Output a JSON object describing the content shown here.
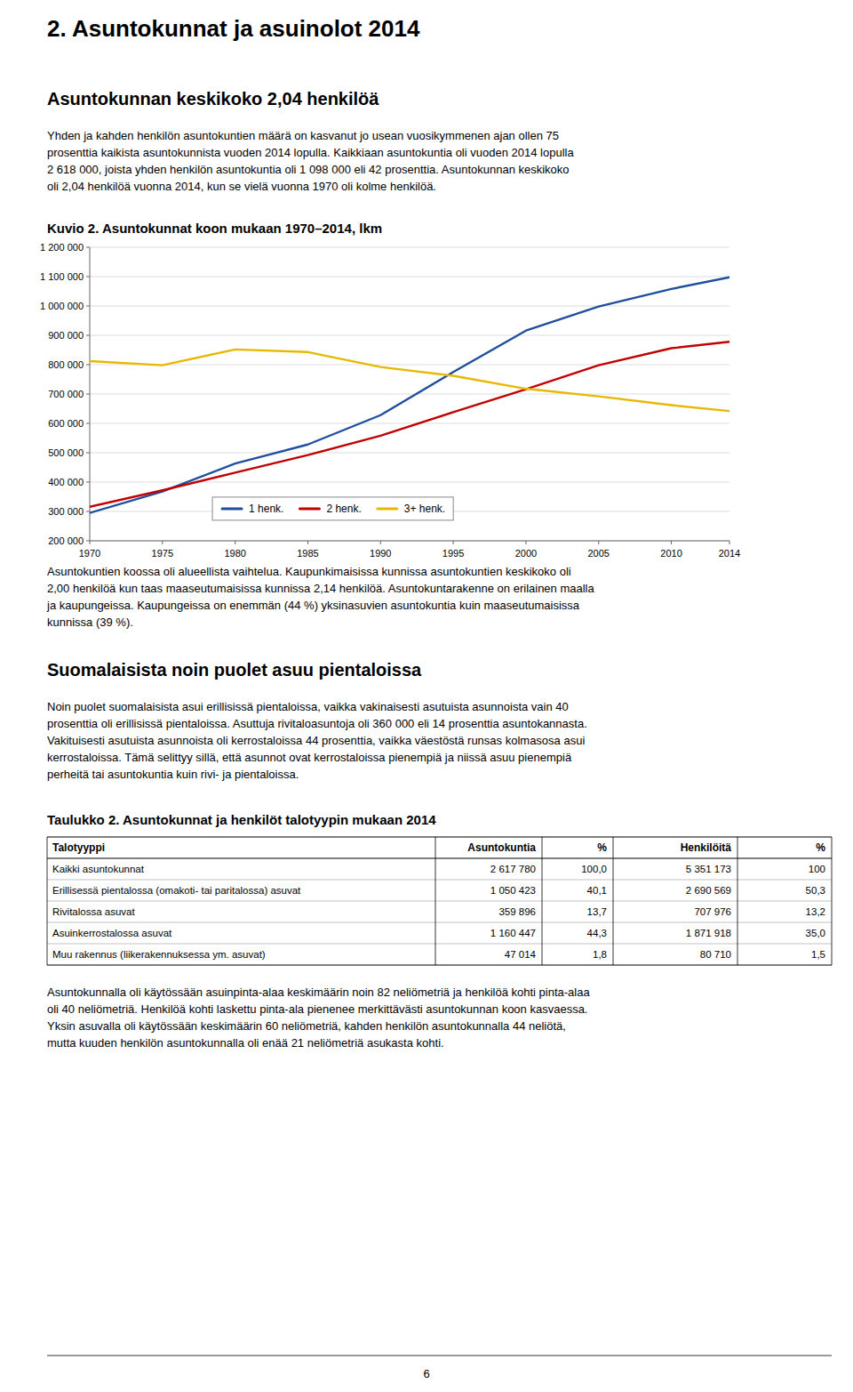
{
  "title": "2. Asuntokunnat ja asuinolot 2014",
  "subtitle": "Asuntokunnan keskikoko 2,04 henkilöä",
  "para1": [
    "Yhden ja kahden henkilön asuntokuntien määrä on kasvanut jo usean vuosikymmenen ajan ollen 75",
    "prosenttia kaikista asuntokunnista vuoden 2014 lopulla. Kaikkiaan asuntokuntia oli vuoden 2014 lopulla",
    "2 618 000, joista yhden henkilön asuntokuntia oli 1 098 000 eli 42 prosenttia. Asuntokunnan keskikoko",
    "oli 2,04 henkilöä vuonna 2014, kun se vielä vuonna 1970 oli kolme henkilöä."
  ],
  "chart_data": {
    "type": "line",
    "title": "Kuvio 2. Asuntokunnat koon mukaan 1970–2014, lkm",
    "x": [
      1970,
      1975,
      1980,
      1985,
      1990,
      1995,
      2000,
      2005,
      2010,
      2014
    ],
    "series": [
      {
        "name": "1 henk.",
        "color": "#1F4E9E",
        "values": [
          295000,
          368000,
          463000,
          528000,
          628000,
          775000,
          916000,
          998000,
          1058000,
          1098000
        ]
      },
      {
        "name": "2 henk.",
        "color": "#C00000",
        "values": [
          316000,
          372000,
          432000,
          492000,
          558000,
          638000,
          716000,
          798000,
          856000,
          878000
        ]
      },
      {
        "name": "3+ henk.",
        "color": "#E8B800",
        "values": [
          812000,
          798000,
          852000,
          843000,
          792000,
          762000,
          718000,
          692000,
          662000,
          642000
        ]
      }
    ],
    "xlim": [
      1970,
      2014
    ],
    "xticks": [
      1970,
      1975,
      1980,
      1985,
      1990,
      1995,
      2000,
      2005,
      2010,
      2014
    ],
    "ylim": [
      200000,
      1200000
    ],
    "yticks": [
      {
        "value": 200000,
        "label": "200 000"
      },
      {
        "value": 300000,
        "label": "300 000"
      },
      {
        "value": 400000,
        "label": "400 000"
      },
      {
        "value": 500000,
        "label": "500 000"
      },
      {
        "value": 600000,
        "label": "600 000"
      },
      {
        "value": 700000,
        "label": "700 000"
      },
      {
        "value": 800000,
        "label": "800 000"
      },
      {
        "value": 900000,
        "label": "900 000"
      },
      {
        "value": 1000000,
        "label": "1 000 000"
      },
      {
        "value": 1100000,
        "label": "1 100 000"
      },
      {
        "value": 1200000,
        "label": "1 200 000"
      }
    ],
    "grid": true,
    "legend": "bottom"
  },
  "para2": [
    "Asuntokuntien koossa oli alueellista vaihtelua. Kaupunkimaisissa kunnissa asuntokuntien keskikoko oli",
    "2,00 henkilöä kun taas maaseutumaisissa kunnissa 2,14 henkilöä. Asuntokuntarakenne on erilainen maalla",
    "ja kaupungeissa. Kaupungeissa on enemmän (44 %) yksinasuvien asuntokuntia kuin maaseutumaisissa",
    "kunnissa (39 %)."
  ],
  "section_title": "Suomalaisista noin puolet asuu pientaloissa",
  "para3": [
    "Noin puolet suomalaisista asui erillisissä pientaloissa, vaikka vakinaisesti asutuista asunnoista vain 40",
    "prosenttia oli erillisissä pientaloissa. Asuttuja rivitaloasuntoja oli 360 000 eli 14 prosenttia asuntokannasta.",
    "Vakituisesti asutuista asunnoista oli kerrostaloissa 44 prosenttia, vaikka väestöstä runsas kolmasosa asui",
    "kerrostaloissa. Tämä selittyy sillä, että asunnot ovat kerrostaloissa pienempiä ja niissä asuu pienempiä",
    "perheitä tai asuntokuntia kuin rivi- ja pientaloissa."
  ],
  "table": {
    "title": "Taulukko 2. Asuntokunnat ja henkilöt talotyypin mukaan 2014",
    "headers": [
      "Talotyyppi",
      "Asuntokuntia",
      "%",
      "Henkilöitä",
      "%"
    ],
    "rows": [
      [
        "Kaikki asuntokunnat",
        "2 617 780",
        "100,0",
        "5 351 173",
        "100"
      ],
      [
        "Erillisessä pientalossa (omakoti- tai paritalossa) asuvat",
        "1 050 423",
        "40,1",
        "2 690 569",
        "50,3"
      ],
      [
        "Rivitalossa asuvat",
        "359 896",
        "13,7",
        "707 976",
        "13,2"
      ],
      [
        "Asuinkerrostalossa asuvat",
        "1 160 447",
        "44,3",
        "1 871 918",
        "35,0"
      ],
      [
        "Muu rakennus (liikerakennuksessa ym. asuvat)",
        "47 014",
        "1,8",
        "80 710",
        "1,5"
      ]
    ]
  },
  "para4": [
    "Asuntokunnalla oli käytössään asuinpinta-alaa keskimäärin noin 82 neliömetriä ja henkilöä kohti pinta-alaa",
    "oli 40 neliömetriä. Henkilöä kohti laskettu pinta-ala pienenee merkittävästi asuntokunnan koon kasvaessa.",
    "Yksin asuvalla oli käytössään keskimäärin 60 neliömetriä, kahden henkilön asuntokunnalla 44 neliötä,",
    "mutta kuuden henkilön asuntokunnalla oli enää 21 neliömetriä asukasta kohti."
  ],
  "page_number": "6"
}
